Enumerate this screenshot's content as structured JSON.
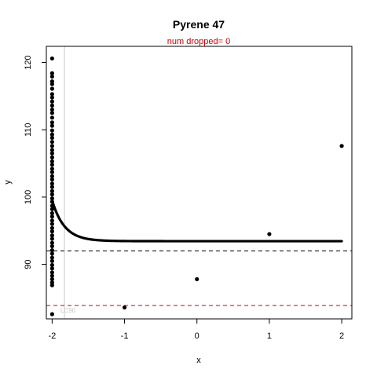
{
  "chart_data": {
    "type": "scatter",
    "title": "Pyrene 47",
    "subtitle": "num dropped= 0",
    "xlabel": "x",
    "ylabel": "y",
    "xlim": [
      -2.08,
      2.14
    ],
    "ylim": [
      81.9,
      122.4
    ],
    "x_ticks": [
      -2,
      -1,
      0,
      1,
      2
    ],
    "x_tick_labels": [
      "-2",
      "-1",
      "0",
      "1",
      "2"
    ],
    "y_ticks": [
      90,
      100,
      110,
      120
    ],
    "y_tick_labels": [
      "90",
      "100",
      "110",
      "120"
    ],
    "grid": false,
    "legend": "none",
    "faint_label": "LC90",
    "colors": {
      "points": "#000000",
      "black_dashed": "#000000",
      "red_dashed": "#d00000",
      "subtitle": "#d00000",
      "vertical_line": "#c8c8c8",
      "faint_label": "#c8c8c8"
    },
    "points_x_neg2_y": [
      120.6,
      118.4,
      117.9,
      117.2,
      116.8,
      116.1,
      115.3,
      114.8,
      114.2,
      113.6,
      113.0,
      112.5,
      111.8,
      111.1,
      110.6,
      109.9,
      109.3,
      108.8,
      108.2,
      107.6,
      107.0,
      106.5,
      105.9,
      105.3,
      104.8,
      104.2,
      103.7,
      103.1,
      102.6,
      102.0,
      101.5,
      100.9,
      100.4,
      99.8,
      99.3,
      98.7,
      98.2,
      97.6,
      97.1,
      96.5,
      96.0,
      95.4,
      94.9,
      94.3,
      93.8,
      93.2,
      92.7,
      92.1,
      91.6,
      91.0,
      90.5,
      89.9,
      89.4,
      88.8,
      88.3,
      87.8,
      87.3,
      86.9,
      82.6
    ],
    "points_other": [
      {
        "x": -1,
        "y": 83.6
      },
      {
        "x": 0,
        "y": 87.8
      },
      {
        "x": 1,
        "y": 94.5
      },
      {
        "x": 2,
        "y": 107.6
      }
    ],
    "fitted_curve": {
      "form": "y = 93.45 + 6.05 * exp(-(x + 2) / 0.17)",
      "asymptote": 93.45,
      "amplitude": 6.05,
      "x_offset": -2,
      "scale": 0.17,
      "x_range": [
        -2,
        2
      ]
    },
    "hlines": [
      {
        "y": 92.0,
        "color": "#000000",
        "style": "dashed"
      },
      {
        "y": 83.9,
        "color": "#d00000",
        "style": "dashed"
      }
    ],
    "vlines": [
      {
        "x": -1.83,
        "color": "#c8c8c8",
        "style": "solid"
      }
    ]
  }
}
